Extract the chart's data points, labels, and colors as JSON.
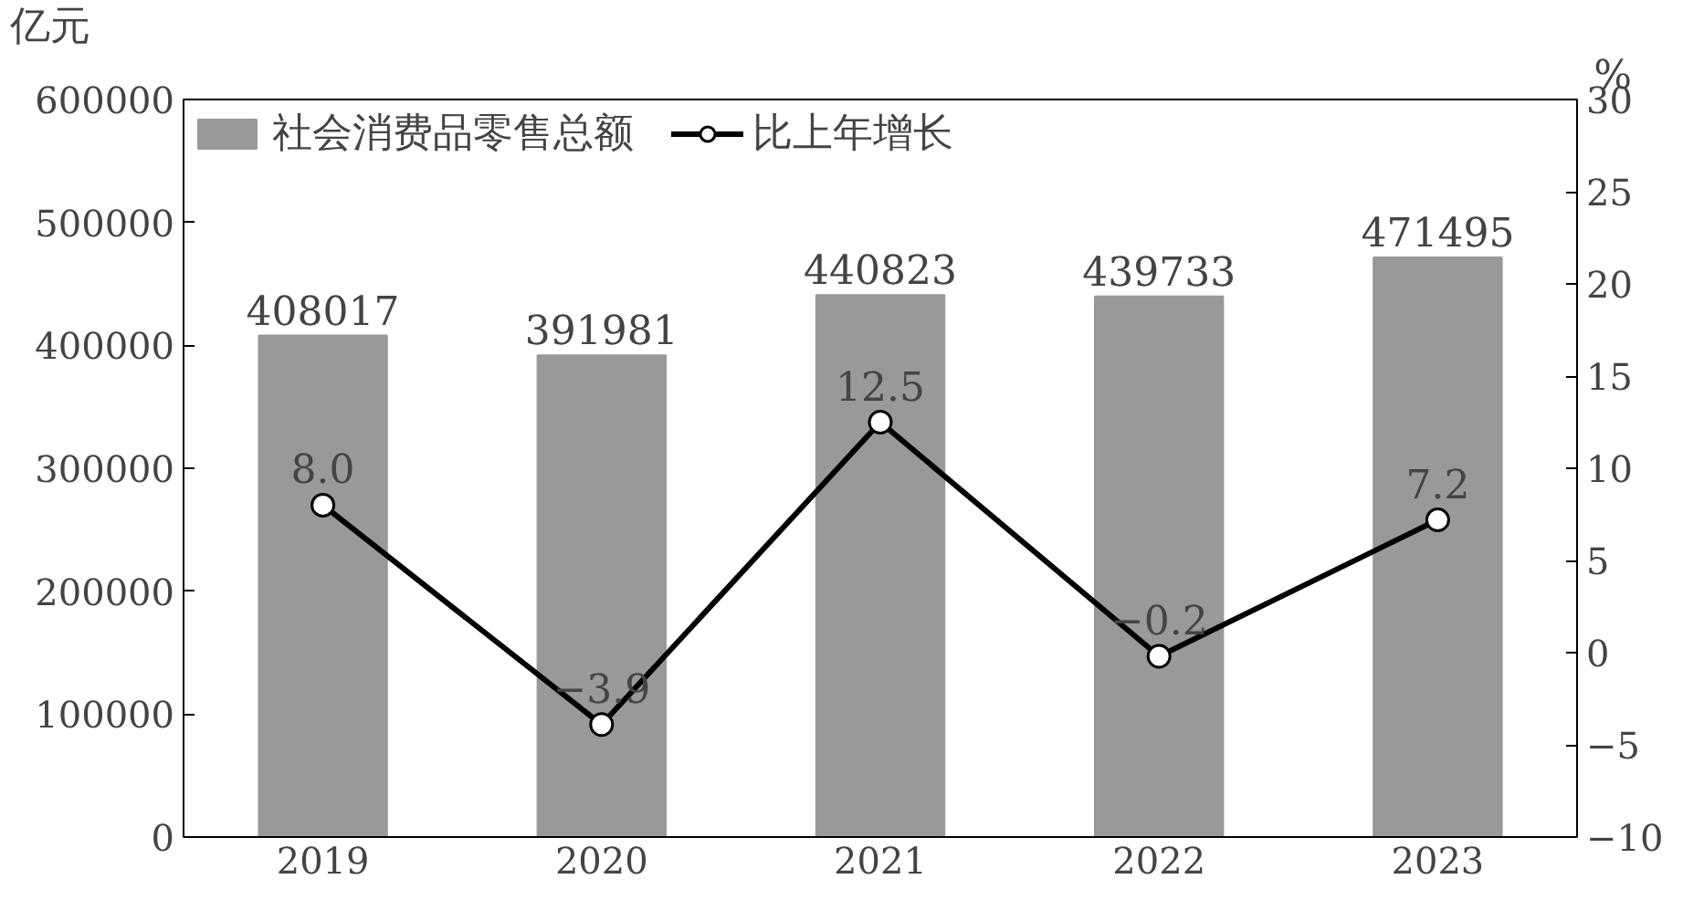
{
  "chart_data": {
    "type": "bar",
    "categories": [
      "2019",
      "2020",
      "2021",
      "2022",
      "2023"
    ],
    "ylabel": "亿元",
    "y2label": "%",
    "series": [
      {
        "name": "社会消费品零售总额",
        "color": "#999999",
        "values": [
          408017,
          391981,
          440823,
          439733,
          471495
        ],
        "value_labels": [
          "408017",
          "391981",
          "440823",
          "439733",
          "471495"
        ]
      },
      {
        "name": "比上年增长",
        "type": "line",
        "axis": "y2",
        "color": "#000000",
        "marker": "circle",
        "values": [
          8.0,
          -3.9,
          12.5,
          -0.2,
          7.2
        ],
        "value_labels": [
          "8.0",
          "−3.9",
          "12.5",
          "−0.2",
          "7.2"
        ]
      }
    ],
    "ylim": [
      0,
      600000
    ],
    "yticks": [
      0,
      100000,
      200000,
      300000,
      400000,
      500000,
      600000
    ],
    "y2lim": [
      -10,
      30
    ],
    "y2ticks": [
      -10,
      -5,
      0,
      5,
      10,
      15,
      20,
      25,
      30
    ],
    "legend": "top left",
    "grid": false
  }
}
